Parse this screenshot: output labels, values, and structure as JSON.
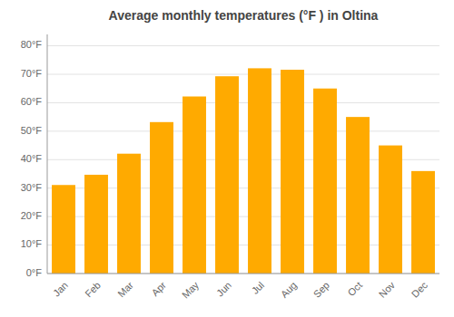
{
  "chart_data": {
    "type": "bar",
    "title": "Average monthly temperatures (°F ) in Oltina",
    "categories": [
      "Jan",
      "Feb",
      "Mar",
      "Apr",
      "May",
      "Jun",
      "Jul",
      "Aug",
      "Sep",
      "Oct",
      "Nov",
      "Dec"
    ],
    "values": [
      31.1,
      34.7,
      42.1,
      53.2,
      62.2,
      69.3,
      72.1,
      71.6,
      65.0,
      55.0,
      45.0,
      36.0
    ],
    "color": "#FFAA00",
    "ylim": [
      0,
      84
    ],
    "yticks": [
      {
        "value": 0,
        "label": "0°F"
      },
      {
        "value": 10,
        "label": "10°F"
      },
      {
        "value": 20,
        "label": "20°F"
      },
      {
        "value": 30,
        "label": "30°F"
      },
      {
        "value": 40,
        "label": "40°F"
      },
      {
        "value": 50,
        "label": "50°F"
      },
      {
        "value": 60,
        "label": "60°F"
      },
      {
        "value": 70,
        "label": "70°F"
      },
      {
        "value": 80,
        "label": "80°F"
      }
    ],
    "grid": true
  }
}
